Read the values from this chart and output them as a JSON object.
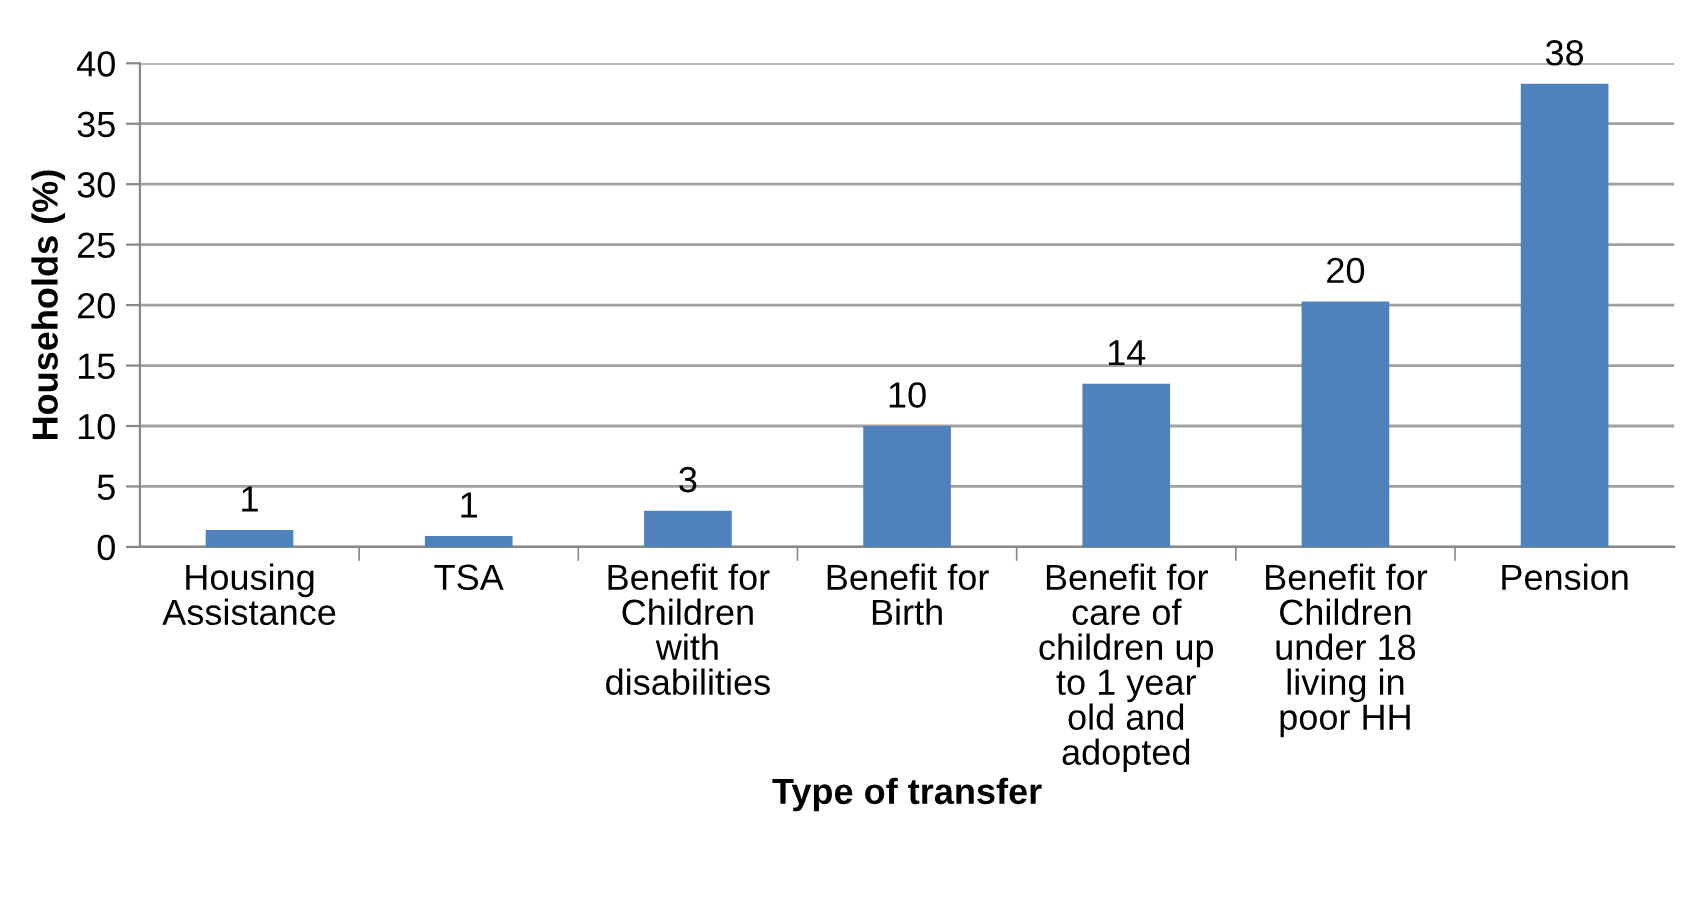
{
  "chart_data": {
    "type": "bar",
    "xlabel": "Type of transfer",
    "ylabel": "Households (%)",
    "categories": [
      "Housing\nAssistance",
      "TSA",
      "Benefit for\nChildren\nwith\ndisabilities",
      "Benefit for\nBirth",
      "Benefit for\ncare of\nchildren up\nto 1 year\nold and\nadopted",
      "Benefit for\nChildren\nunder 18\nliving in\npoor HH",
      "Pension"
    ],
    "values": [
      1.4,
      0.9,
      3.0,
      10.0,
      13.5,
      20.3,
      38.3
    ],
    "value_labels": [
      "1",
      "1",
      "3",
      "10",
      "14",
      "20",
      "38"
    ],
    "color": "#4f81bd",
    "ylim": [
      0,
      40
    ],
    "yticks": [
      0,
      5,
      10,
      15,
      20,
      25,
      30,
      35,
      40
    ],
    "grid": "y",
    "legend": false
  }
}
